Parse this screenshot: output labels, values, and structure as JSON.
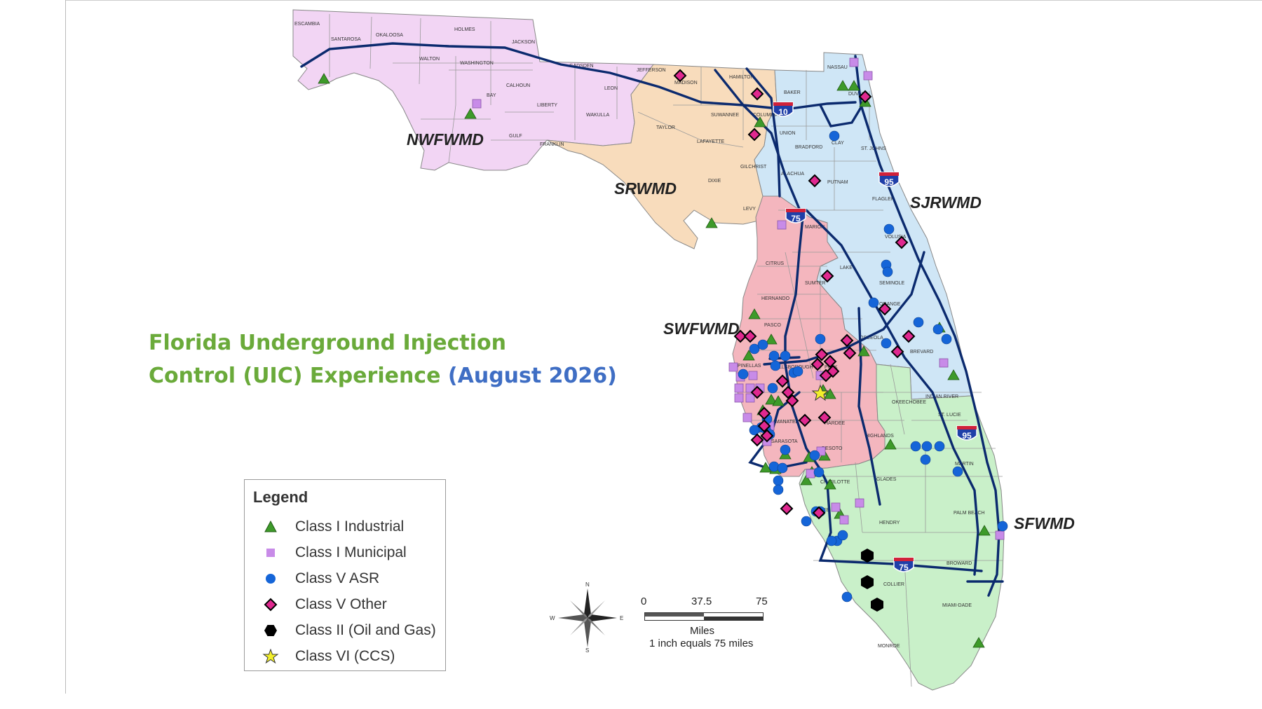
{
  "title": {
    "line1": "Florida Underground Injection",
    "line2": "Control (UIC) Experience",
    "date": "(August 2026)"
  },
  "districts": [
    {
      "name": "NWFWMD",
      "color": "#f2d5f4"
    },
    {
      "name": "SRWMD",
      "color": "#f8dcbc"
    },
    {
      "name": "SJRWMD",
      "color": "#cfe6f6"
    },
    {
      "name": "SWFWMD",
      "color": "#f4b6be"
    },
    {
      "name": "SFWMD",
      "color": "#c9f0c9"
    }
  ],
  "colors": {
    "highway": "#0b2a6e",
    "county_border": "#9a9a9a",
    "class_i_industrial": "#3e9a2a",
    "class_i_municipal": "#c88be8",
    "class_v_asr": "#1565d8",
    "class_v_other": "#e0288f",
    "class_ii": "#000000",
    "class_vi": "#f2ef2a"
  },
  "highway_shields": [
    "10",
    "95",
    "75",
    "95",
    "75"
  ],
  "counties": [
    "ESCAMBIA",
    "SANTAROSA",
    "OKALOOSA",
    "HOLMES",
    "JACKSON",
    "WALTON",
    "WASHINGTON",
    "GADSDEN",
    "BAY",
    "CALHOUN",
    "LIBERTY",
    "LEON",
    "WAKULLA",
    "GULF",
    "FRANKLIN",
    "JEFFERSON",
    "MADISON",
    "HAMILTON",
    "NASSAU",
    "BAKER",
    "DUVAL",
    "TAYLOR",
    "SUWANNEE",
    "COLUMBIA",
    "UNION",
    "LAFAYETTE",
    "CLAY",
    "ST. JOHNS",
    "BRADFORD",
    "DIXIE",
    "GILCHRIST",
    "ALACHUA",
    "PUTNAM",
    "FLAGLER",
    "LEVY",
    "MARION",
    "VOLUSIA",
    "CITRUS",
    "SUMTER",
    "LAKE",
    "SEMINOLE",
    "HERNANDO",
    "ORANGE",
    "PASCO",
    "OSCEOLA",
    "BREVARD",
    "PINELLAS",
    "HILLSBOROUGH",
    "POLK",
    "INDIAN RIVER",
    "MANATEE",
    "HARDEE",
    "OKEECHOBEE",
    "ST. LUCIE",
    "SARASOTA",
    "DESOTO",
    "HIGHLANDS",
    "MARTIN",
    "CHARLOTTE",
    "GLADES",
    "LEE",
    "HENDRY",
    "PALM BEACH",
    "BROWARD",
    "COLLIER",
    "MIAMI-DADE",
    "MONROE"
  ],
  "legend": {
    "title": "Legend",
    "items": [
      {
        "label": "Class I Industrial",
        "symbol": "triangle",
        "color": "#3e9a2a"
      },
      {
        "label": "Class I Municipal",
        "symbol": "square",
        "color": "#c88be8"
      },
      {
        "label": "Class V ASR",
        "symbol": "circle",
        "color": "#1565d8"
      },
      {
        "label": "Class V Other",
        "symbol": "diamond",
        "color": "#e0288f"
      },
      {
        "label": "Class II (Oil and Gas)",
        "symbol": "hexagon",
        "color": "#000000"
      },
      {
        "label": "Class VI (CCS)",
        "symbol": "star",
        "color": "#f2ef2a"
      }
    ]
  },
  "scale_bar": {
    "ticks": [
      "0",
      "37.5",
      "75"
    ],
    "unit": "Miles",
    "note": "1 inch equals 75 miles"
  },
  "compass": {
    "n": "N",
    "s": "S",
    "e": "E",
    "w": "W"
  }
}
